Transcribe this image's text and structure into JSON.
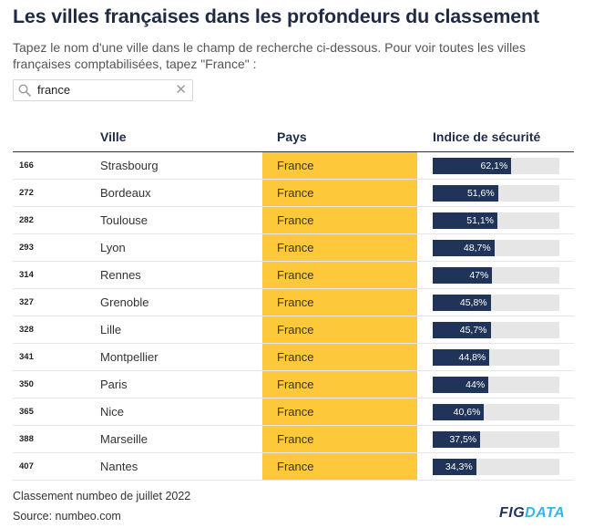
{
  "title": "Les villes françaises dans les profondeurs du classement",
  "subtitle": "Tapez le nom d'une ville dans le champ de recherche ci-dessous. Pour voir toutes les villes françaises comptabilisées, tapez \"France\" :",
  "search": {
    "value": "france",
    "icon": "search-icon",
    "clear_icon": "close-icon",
    "clear_glyph": "✕"
  },
  "table": {
    "headers": {
      "city": "Ville",
      "country": "Pays",
      "index": "Indice de sécurité"
    },
    "max_value": 100,
    "colors": {
      "country_bg": "#fec83b",
      "bar": "#1f3458",
      "track": "#e6e6e6"
    },
    "rows": [
      {
        "rank": "166",
        "city": "Strasbourg",
        "country": "France",
        "value": 62.1,
        "label": "62,1%"
      },
      {
        "rank": "272",
        "city": "Bordeaux",
        "country": "France",
        "value": 51.6,
        "label": "51,6%"
      },
      {
        "rank": "282",
        "city": "Toulouse",
        "country": "France",
        "value": 51.1,
        "label": "51,1%"
      },
      {
        "rank": "293",
        "city": "Lyon",
        "country": "France",
        "value": 48.7,
        "label": "48,7%"
      },
      {
        "rank": "314",
        "city": "Rennes",
        "country": "France",
        "value": 47,
        "label": "47%"
      },
      {
        "rank": "327",
        "city": "Grenoble",
        "country": "France",
        "value": 45.8,
        "label": "45,8%"
      },
      {
        "rank": "328",
        "city": "Lille",
        "country": "France",
        "value": 45.7,
        "label": "45,7%"
      },
      {
        "rank": "341",
        "city": "Montpellier",
        "country": "France",
        "value": 44.8,
        "label": "44,8%"
      },
      {
        "rank": "350",
        "city": "Paris",
        "country": "France",
        "value": 44,
        "label": "44%"
      },
      {
        "rank": "365",
        "city": "Nice",
        "country": "France",
        "value": 40.6,
        "label": "40,6%"
      },
      {
        "rank": "388",
        "city": "Marseille",
        "country": "France",
        "value": 37.5,
        "label": "37,5%"
      },
      {
        "rank": "407",
        "city": "Nantes",
        "country": "France",
        "value": 34.3,
        "label": "34,3%"
      }
    ]
  },
  "footer": {
    "note": "Classement numbeo de juillet 2022",
    "source": "Source: numbeo.com"
  },
  "logo": {
    "fig": "FIG",
    "data": "DATA"
  }
}
